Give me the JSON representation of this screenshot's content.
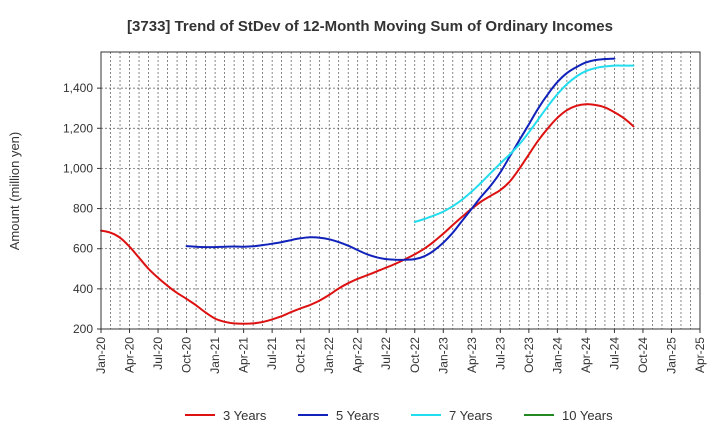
{
  "chart_data": {
    "type": "line",
    "title": "[3733]  Trend of StDev of 12-Month Moving Sum of Ordinary Incomes",
    "xlabel": "",
    "ylabel": "Amount (million yen)",
    "ylim": [
      200,
      1580
    ],
    "yticks": [
      200,
      400,
      600,
      800,
      1000,
      1200,
      1400
    ],
    "ytick_labels": [
      "200",
      "400",
      "600",
      "800",
      "1,000",
      "1,200",
      "1,400"
    ],
    "x_start": "Jan-20",
    "x_months": 63,
    "xticks": [
      0,
      3,
      6,
      9,
      12,
      15,
      18,
      21,
      24,
      27,
      30,
      33,
      36,
      39,
      42,
      45,
      48,
      51,
      54,
      57,
      60,
      63
    ],
    "xtick_labels": [
      "Jan-20",
      "Apr-20",
      "Jul-20",
      "Oct-20",
      "Jan-21",
      "Apr-21",
      "Jul-21",
      "Oct-21",
      "Jan-22",
      "Apr-22",
      "Jul-22",
      "Oct-22",
      "Jan-23",
      "Apr-23",
      "Jul-23",
      "Oct-23",
      "Jan-24",
      "Apr-24",
      "Jul-24",
      "Oct-24",
      "Jan-25",
      "Apr-25"
    ],
    "legend_position": "bottom",
    "series": [
      {
        "name": "3 Years",
        "color": "#dd1111",
        "points": [
          [
            0,
            690
          ],
          [
            1,
            680
          ],
          [
            2,
            655
          ],
          [
            3,
            610
          ],
          [
            4,
            555
          ],
          [
            5,
            500
          ],
          [
            6,
            455
          ],
          [
            7,
            415
          ],
          [
            8,
            380
          ],
          [
            9,
            350
          ],
          [
            10,
            318
          ],
          [
            11,
            282
          ],
          [
            12,
            252
          ],
          [
            13,
            236
          ],
          [
            14,
            228
          ],
          [
            15,
            226
          ],
          [
            16,
            228
          ],
          [
            17,
            235
          ],
          [
            18,
            248
          ],
          [
            19,
            264
          ],
          [
            20,
            284
          ],
          [
            21,
            303
          ],
          [
            22,
            320
          ],
          [
            23,
            342
          ],
          [
            24,
            370
          ],
          [
            25,
            402
          ],
          [
            26,
            428
          ],
          [
            27,
            450
          ],
          [
            28,
            468
          ],
          [
            29,
            487
          ],
          [
            30,
            506
          ],
          [
            31,
            526
          ],
          [
            32,
            548
          ],
          [
            33,
            572
          ],
          [
            34,
            600
          ],
          [
            35,
            635
          ],
          [
            36,
            675
          ],
          [
            37,
            718
          ],
          [
            38,
            760
          ],
          [
            39,
            800
          ],
          [
            40,
            835
          ],
          [
            41,
            864
          ],
          [
            42,
            892
          ],
          [
            43,
            935
          ],
          [
            44,
            998
          ],
          [
            45,
            1070
          ],
          [
            46,
            1140
          ],
          [
            47,
            1200
          ],
          [
            48,
            1252
          ],
          [
            49,
            1290
          ],
          [
            50,
            1312
          ],
          [
            51,
            1320
          ],
          [
            52,
            1316
          ],
          [
            53,
            1304
          ],
          [
            54,
            1280
          ],
          [
            55,
            1250
          ],
          [
            56,
            1210
          ]
        ]
      },
      {
        "name": "5 Years",
        "color": "#1122bb",
        "points": [
          [
            9,
            613
          ],
          [
            10,
            610
          ],
          [
            11,
            608
          ],
          [
            12,
            608
          ],
          [
            13,
            610
          ],
          [
            14,
            611
          ],
          [
            15,
            610
          ],
          [
            16,
            612
          ],
          [
            17,
            618
          ],
          [
            18,
            625
          ],
          [
            19,
            633
          ],
          [
            20,
            643
          ],
          [
            21,
            652
          ],
          [
            22,
            657
          ],
          [
            23,
            655
          ],
          [
            24,
            647
          ],
          [
            25,
            633
          ],
          [
            26,
            615
          ],
          [
            27,
            593
          ],
          [
            28,
            572
          ],
          [
            29,
            557
          ],
          [
            30,
            548
          ],
          [
            31,
            545
          ],
          [
            32,
            545
          ],
          [
            33,
            548
          ],
          [
            34,
            562
          ],
          [
            35,
            590
          ],
          [
            36,
            630
          ],
          [
            37,
            680
          ],
          [
            38,
            740
          ],
          [
            39,
            800
          ],
          [
            40,
            860
          ],
          [
            41,
            915
          ],
          [
            42,
            980
          ],
          [
            43,
            1060
          ],
          [
            44,
            1140
          ],
          [
            45,
            1220
          ],
          [
            46,
            1300
          ],
          [
            47,
            1370
          ],
          [
            48,
            1430
          ],
          [
            49,
            1475
          ],
          [
            50,
            1505
          ],
          [
            51,
            1528
          ],
          [
            52,
            1540
          ],
          [
            53,
            1545
          ],
          [
            54,
            1547
          ]
        ]
      },
      {
        "name": "7 Years",
        "color": "#22ddee",
        "points": [
          [
            33,
            733
          ],
          [
            34,
            748
          ],
          [
            35,
            765
          ],
          [
            36,
            785
          ],
          [
            37,
            812
          ],
          [
            38,
            845
          ],
          [
            39,
            885
          ],
          [
            40,
            930
          ],
          [
            41,
            978
          ],
          [
            42,
            1025
          ],
          [
            43,
            1070
          ],
          [
            44,
            1120
          ],
          [
            45,
            1180
          ],
          [
            46,
            1245
          ],
          [
            47,
            1310
          ],
          [
            48,
            1370
          ],
          [
            49,
            1420
          ],
          [
            50,
            1458
          ],
          [
            51,
            1485
          ],
          [
            52,
            1500
          ],
          [
            53,
            1508
          ],
          [
            54,
            1512
          ],
          [
            55,
            1512
          ],
          [
            56,
            1512
          ]
        ]
      },
      {
        "name": "10 Years",
        "color": "#228822",
        "points": []
      }
    ]
  }
}
